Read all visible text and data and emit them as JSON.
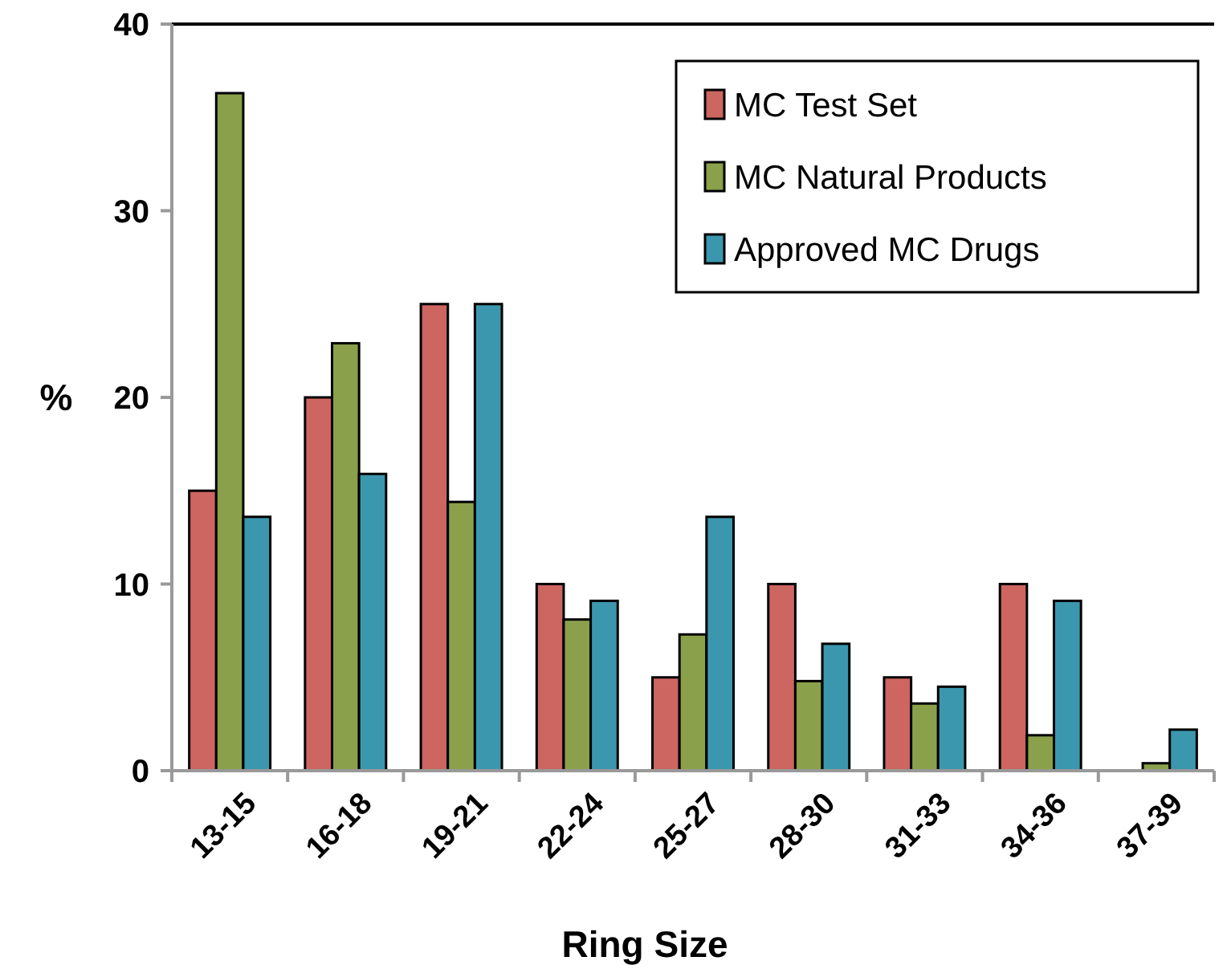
{
  "chart_data": {
    "type": "bar",
    "xlabel": "Ring Size",
    "ylabel": "%",
    "categories": [
      "13-15",
      "16-18",
      "19-21",
      "22-24",
      "25-27",
      "28-30",
      "31-33",
      "34-36",
      "37-39"
    ],
    "series": [
      {
        "name": "MC Test Set",
        "color": "#cd6560",
        "values": [
          15,
          20,
          25,
          10,
          5,
          10,
          5,
          10,
          0
        ]
      },
      {
        "name": "MC Natural Products",
        "color": "#8aa04a",
        "values": [
          36.3,
          22.9,
          14.4,
          8.1,
          7.3,
          4.8,
          3.6,
          1.9,
          0.4
        ]
      },
      {
        "name": "Approved MC Drugs",
        "color": "#3b97ad",
        "values": [
          13.6,
          15.9,
          25,
          9.1,
          13.6,
          6.8,
          4.5,
          9.1,
          2.2
        ]
      }
    ],
    "ylim": [
      0,
      40
    ],
    "yticks": [
      0,
      10,
      20,
      30,
      40
    ],
    "grid": false,
    "legend": "top right"
  }
}
